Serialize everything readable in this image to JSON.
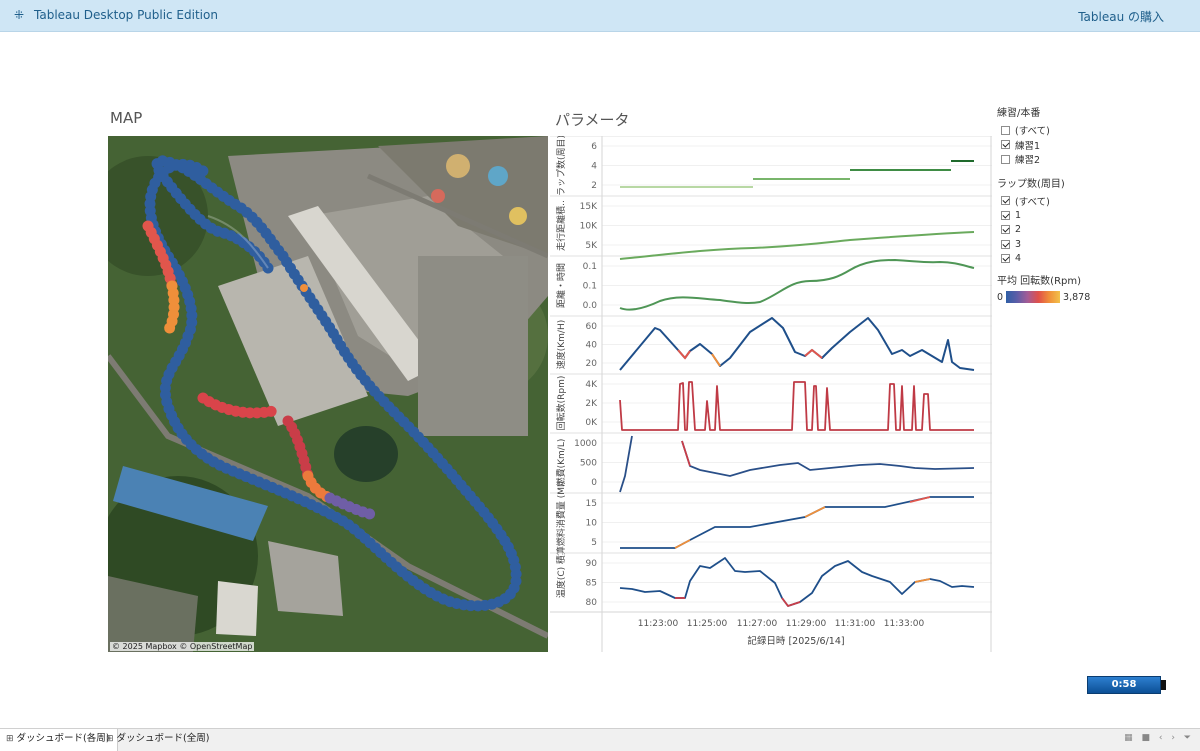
{
  "app": {
    "logo_icon": "tableau-plus-icon",
    "logo_glyph": "⁜",
    "title": "Tableau Desktop Public Edition",
    "buy_link": "Tableau の購入"
  },
  "map": {
    "heading": "MAP",
    "attribution": "© 2025 Mapbox © OpenStreetMap"
  },
  "params": {
    "heading": "パラメータ",
    "x_axis_title": "記録日時 [2025/6/14]",
    "x_ticks": [
      "11:23:00",
      "11:25:00",
      "11:27:00",
      "11:29:00",
      "11:31:00",
      "11:33:00"
    ],
    "rows": [
      {
        "label": "ラップ数(周目)",
        "ticks": [
          "6",
          "4",
          "2"
        ]
      },
      {
        "label": "走行距離積..",
        "ticks": [
          "15K",
          "10K",
          "5K"
        ]
      },
      {
        "label": "距離・時間",
        "ticks": [
          "0.1",
          "0.1",
          "0.0"
        ]
      },
      {
        "label": "速度(Km/H)",
        "ticks": [
          "60",
          "40",
          "20"
        ]
      },
      {
        "label": "回転数(Rpm)",
        "ticks": [
          "4K",
          "2K",
          "0K"
        ]
      },
      {
        "label": "燃費(Km/L)",
        "ticks": [
          "1000",
          "500",
          "0"
        ]
      },
      {
        "label": "積算燃料消費量 (Ml)",
        "ticks": [
          "15",
          "10",
          "5"
        ]
      },
      {
        "label": "温度(C)",
        "ticks": [
          "90",
          "85",
          "80"
        ]
      }
    ]
  },
  "filters": {
    "practice": {
      "title": "練習/本番",
      "options": [
        {
          "label": "(すべて)",
          "checked": false
        },
        {
          "label": "練習1",
          "checked": true
        },
        {
          "label": "練習2",
          "checked": false
        }
      ]
    },
    "laps": {
      "title": "ラップ数(周目)",
      "options": [
        {
          "label": "(すべて)",
          "checked": true
        },
        {
          "label": "1",
          "checked": true
        },
        {
          "label": "2",
          "checked": true
        },
        {
          "label": "3",
          "checked": true
        },
        {
          "label": "4",
          "checked": true
        }
      ]
    },
    "legend": {
      "title": "平均 回転数(Rpm)",
      "min": "0",
      "max": "3,878"
    }
  },
  "player": {
    "time": "0:58"
  },
  "tabs": {
    "icon": "dashboard-icon",
    "icon_glyph": "⊞",
    "items": [
      {
        "label": "ダッシュボード(各周)",
        "active": true
      },
      {
        "label": "ダッシュボード(全周)",
        "active": false
      }
    ],
    "controls": "▦ ■ ‹ › ⏷"
  }
}
